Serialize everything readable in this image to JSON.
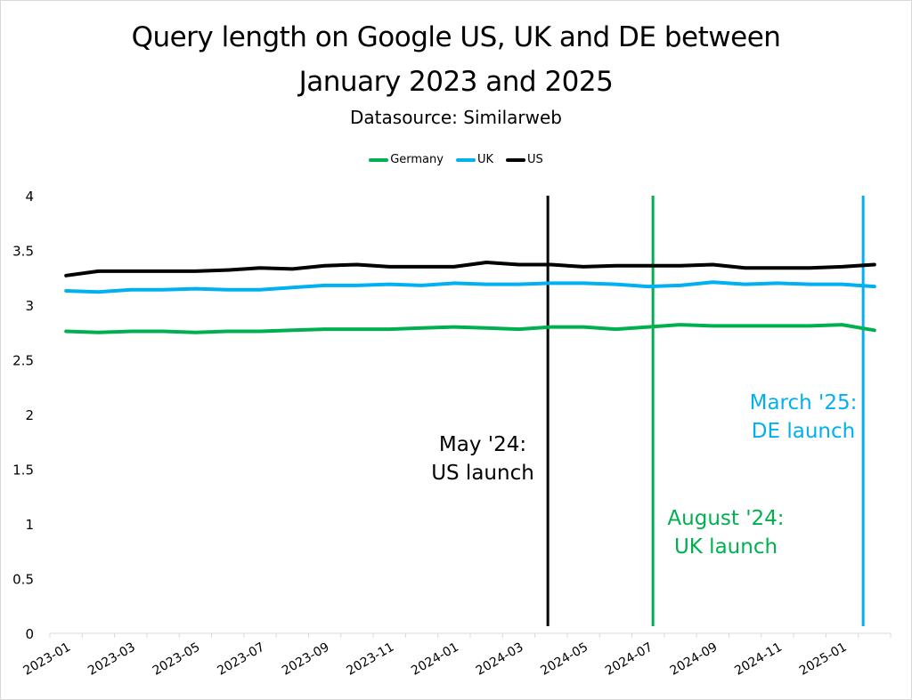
{
  "chart_data": {
    "type": "line",
    "title": "Query length on Google US, UK and DE between January 2023 and 2025",
    "title_lines": [
      "Query length on Google US, UK and DE between",
      "January 2023 and 2025"
    ],
    "subtitle": "Datasource: Similarweb",
    "xlabel": "",
    "ylabel": "",
    "ylim": [
      0,
      4
    ],
    "yticks": [
      "0",
      "0.5",
      "1",
      "1.5",
      "2",
      "2.5",
      "3",
      "3.5",
      "4"
    ],
    "ytick_values": [
      0,
      0.5,
      1,
      1.5,
      2,
      2.5,
      3,
      3.5,
      4
    ],
    "grid": false,
    "legend_position": "top",
    "x": [
      "2023-01",
      "2023-02",
      "2023-03",
      "2023-04",
      "2023-05",
      "2023-06",
      "2023-07",
      "2023-08",
      "2023-09",
      "2023-10",
      "2023-11",
      "2023-12",
      "2024-01",
      "2024-02",
      "2024-03",
      "2024-04",
      "2024-05",
      "2024-06",
      "2024-07",
      "2024-08",
      "2024-09",
      "2024-10",
      "2024-11",
      "2024-12",
      "2025-01",
      "2025-02"
    ],
    "xtick_labels": [
      "2023-01",
      "2023-03",
      "2023-05",
      "2023-07",
      "2023-09",
      "2023-11",
      "2024-01",
      "2024-03",
      "2024-05",
      "2024-07",
      "2024-09",
      "2024-11",
      "2025-01"
    ],
    "series": [
      {
        "name": "Germany",
        "color": "#00b050",
        "values": [
          2.76,
          2.75,
          2.76,
          2.76,
          2.75,
          2.76,
          2.76,
          2.77,
          2.78,
          2.78,
          2.78,
          2.79,
          2.8,
          2.79,
          2.78,
          2.8,
          2.8,
          2.78,
          2.8,
          2.82,
          2.81,
          2.81,
          2.81,
          2.81,
          2.82,
          2.77
        ]
      },
      {
        "name": "UK",
        "color": "#00b0f0",
        "values": [
          3.13,
          3.12,
          3.14,
          3.14,
          3.15,
          3.14,
          3.14,
          3.16,
          3.18,
          3.18,
          3.19,
          3.18,
          3.2,
          3.19,
          3.19,
          3.2,
          3.2,
          3.19,
          3.17,
          3.18,
          3.21,
          3.19,
          3.2,
          3.19,
          3.19,
          3.17
        ]
      },
      {
        "name": "US",
        "color": "#000000",
        "values": [
          3.27,
          3.31,
          3.31,
          3.31,
          3.31,
          3.32,
          3.34,
          3.33,
          3.36,
          3.37,
          3.35,
          3.35,
          3.35,
          3.39,
          3.37,
          3.37,
          3.35,
          3.36,
          3.36,
          3.36,
          3.37,
          3.34,
          3.34,
          3.34,
          3.35,
          3.37
        ]
      }
    ],
    "annotations": [
      {
        "name": "us-launch",
        "text_lines": [
          "May '24:",
          "US launch"
        ],
        "color": "#000000",
        "x_position": 15.4
      },
      {
        "name": "uk-launch",
        "text_lines": [
          "August '24:",
          "UK launch"
        ],
        "color": "#00b050",
        "x_position": 18.65
      },
      {
        "name": "de-launch",
        "text_lines": [
          "March '25:",
          "DE launch"
        ],
        "color": "#00b0f0",
        "x_position": 25.15
      }
    ]
  }
}
